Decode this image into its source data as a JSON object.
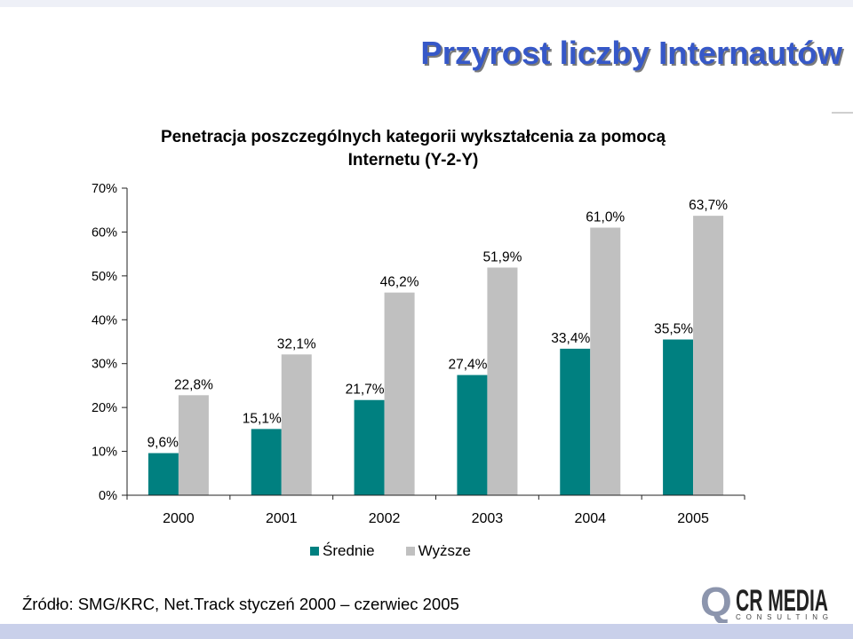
{
  "slide": {
    "title": "Przyrost liczby Internautów",
    "source": "Źródło: SMG/KRC, Net.Track styczeń 2000 – czerwiec 2005",
    "logo": {
      "mark": "Q",
      "name": "CR MEDIA",
      "tagline": "CONSULTING"
    }
  },
  "colors": {
    "title": "#3658c8",
    "bottom_band": "#c9d0ea"
  },
  "chart_data": {
    "type": "bar",
    "title": "Penetracja poszczególnych kategorii wykształcenia za pomocą Internetu (Y-2-Y)",
    "categories": [
      "2000",
      "2001",
      "2002",
      "2003",
      "2004",
      "2005"
    ],
    "series": [
      {
        "name": "Średnie",
        "color": "#008080",
        "values": [
          9.6,
          15.1,
          21.7,
          27.4,
          33.4,
          35.5
        ],
        "labels": [
          "9,6%",
          "15,1%",
          "21,7%",
          "27,4%",
          "33,4%",
          "35,5%"
        ]
      },
      {
        "name": "Wyższe",
        "color": "#c0c0c0",
        "values": [
          22.8,
          32.1,
          46.2,
          51.9,
          61.0,
          63.7
        ],
        "labels": [
          "22,8%",
          "32,1%",
          "46,2%",
          "51,9%",
          "61,0%",
          "63,7%"
        ]
      }
    ],
    "ylim": [
      0,
      70
    ],
    "y_ticks": [
      0,
      10,
      20,
      30,
      40,
      50,
      60,
      70
    ],
    "y_tick_labels": [
      "0%",
      "10%",
      "20%",
      "30%",
      "40%",
      "50%",
      "60%",
      "70%"
    ],
    "grid": false,
    "legend": "bottom"
  }
}
